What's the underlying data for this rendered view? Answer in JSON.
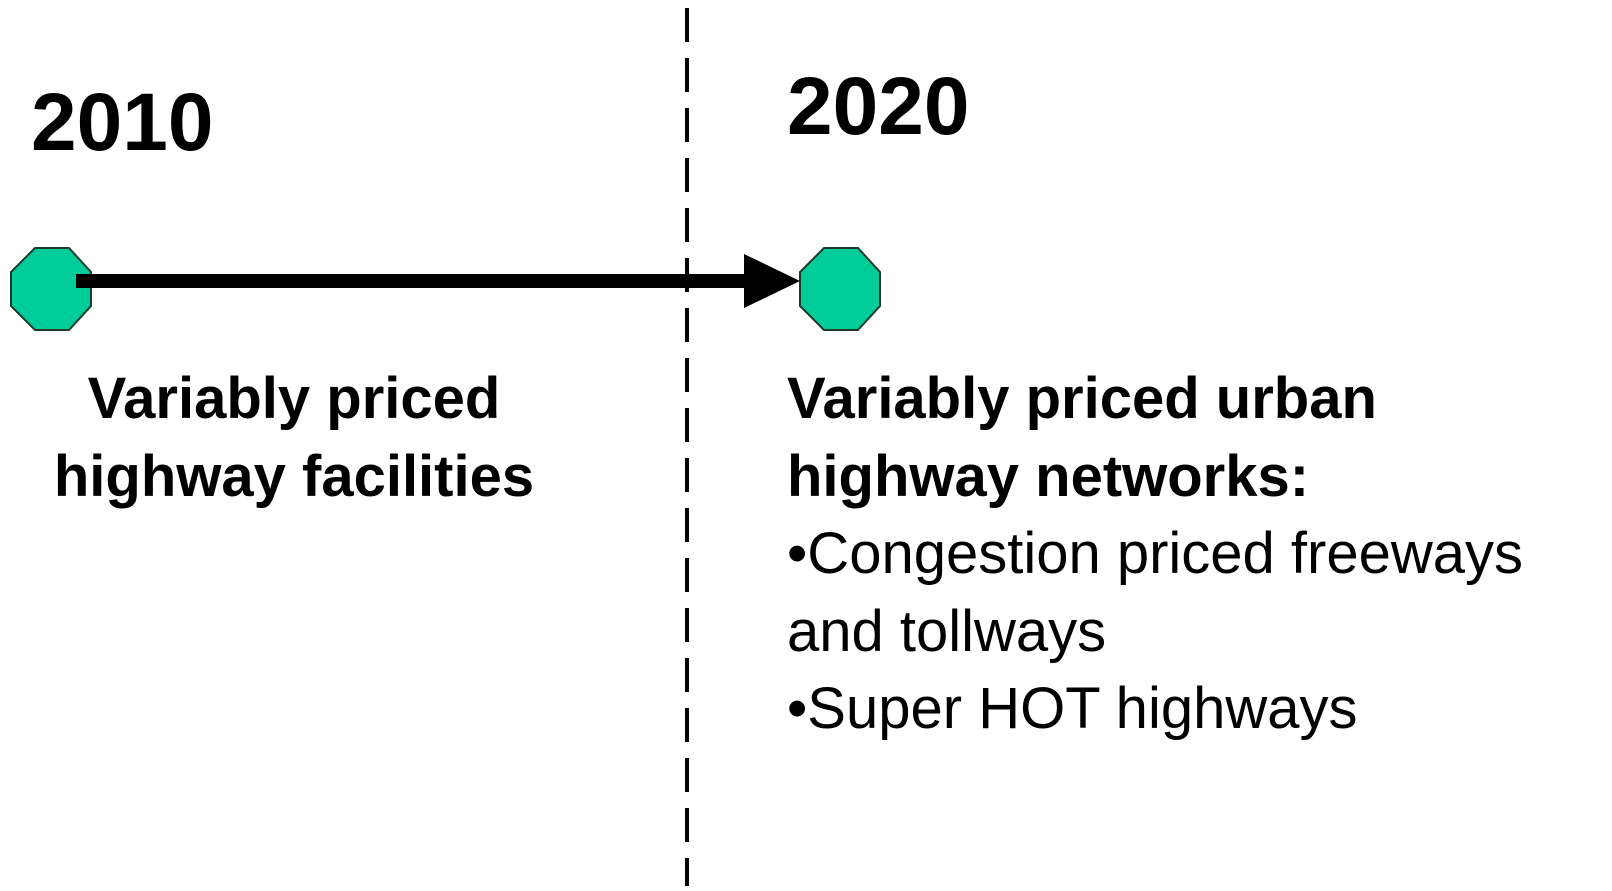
{
  "left": {
    "year": "2010",
    "lines": [
      "Variably priced",
      "highway facilities"
    ]
  },
  "right": {
    "year": "2020",
    "lines": [
      "Variably priced urban",
      "highway networks:"
    ],
    "bullets": [
      [
        "•Congestion priced freeways",
        "and tollways"
      ],
      [
        "•Super HOT highways"
      ]
    ]
  }
}
